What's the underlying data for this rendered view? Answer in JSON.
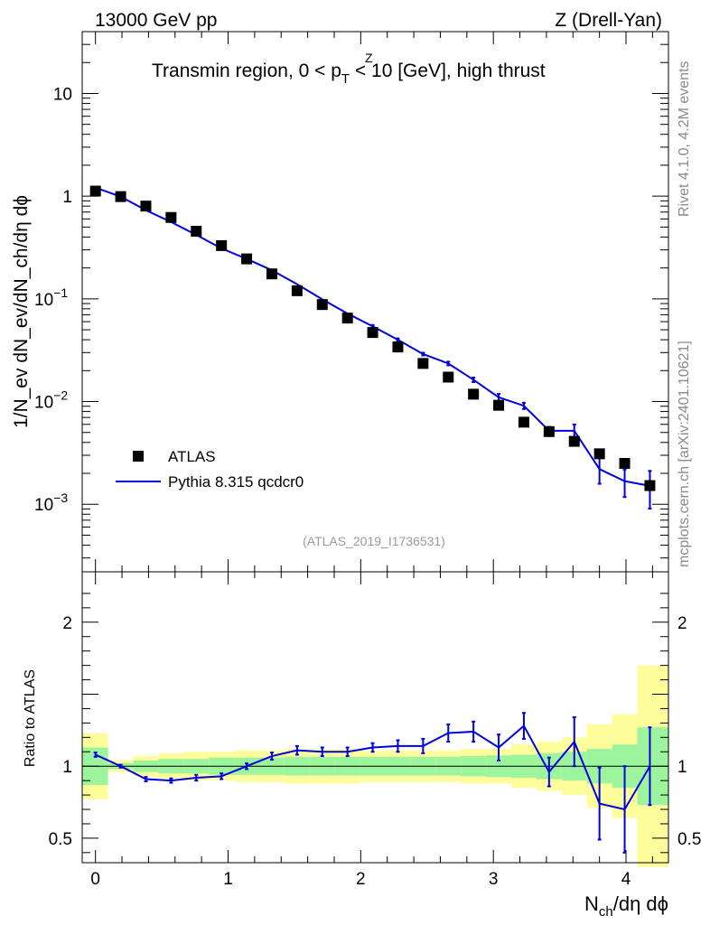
{
  "chart_data": {
    "type": "scatter",
    "header_left": "13000 GeV pp",
    "header_right": "Z (Drell-Yan)",
    "title_prefix": "Transmin region, 0 < p",
    "title_sub": "T",
    "title_sup": "Z",
    "title_suffix": " < 10 [GeV], high thrust",
    "ylabel_top": "1/N_ev dN_ev/dN_ch/dη dϕ",
    "ylabel_ratio": "Ratio to ATLAS",
    "xlabel_base": "N",
    "xlabel_sub": "ch",
    "xlabel_rest": "/dη dϕ",
    "side_label_1": "Rivet 4.1.0,  4.2M events",
    "side_label_2": "mcplots.cern.ch [arXiv:2401.10621]",
    "analysis_id": "(ATLAS_2019_I1736531)",
    "legend": [
      "ATLAS",
      "Pythia 8.315 qcdcr0"
    ],
    "colors": {
      "data": "#000000",
      "mc": "#0000e0",
      "band_inner": "#9cf59c",
      "band_outer": "#fdfd9c"
    },
    "xlim": [
      -0.1,
      4.32
    ],
    "ylim_main": [
      0.00022,
      40
    ],
    "ylim_ratio": [
      0.33,
      2.35
    ],
    "x_ticks": [
      "0",
      "1",
      "2",
      "3",
      "4"
    ],
    "y_ticks_main": [
      {
        "value": 10,
        "base": "10",
        "exp": ""
      },
      {
        "value": 1,
        "base": "1",
        "exp": ""
      },
      {
        "value": 0.1,
        "base": "10",
        "exp": "−1"
      },
      {
        "value": 0.01,
        "base": "10",
        "exp": "−2"
      },
      {
        "value": 0.001,
        "base": "10",
        "exp": "−3"
      }
    ],
    "y_ticks_ratio": [
      {
        "value": 2,
        "label": "2"
      },
      {
        "value": 1,
        "label": "1"
      },
      {
        "value": 0.5,
        "label": "0.5"
      }
    ],
    "x": [
      0.0,
      0.19,
      0.38,
      0.57,
      0.76,
      0.95,
      1.14,
      1.33,
      1.52,
      1.71,
      1.9,
      2.09,
      2.28,
      2.47,
      2.66,
      2.85,
      3.04,
      3.23,
      3.42,
      3.61,
      3.8,
      3.99,
      4.18
    ],
    "atlas": [
      1.12,
      0.99,
      0.8,
      0.62,
      0.455,
      0.33,
      0.245,
      0.175,
      0.12,
      0.088,
      0.065,
      0.047,
      0.034,
      0.0235,
      0.0173,
      0.0118,
      0.0092,
      0.0063,
      0.0051,
      0.0041,
      0.0031,
      0.0025,
      0.00152
    ],
    "mc": [
      1.21,
      0.99,
      0.73,
      0.56,
      0.42,
      0.31,
      0.245,
      0.19,
      0.139,
      0.099,
      0.072,
      0.054,
      0.04,
      0.029,
      0.0235,
      0.0163,
      0.011,
      0.0091,
      0.0052,
      0.0052,
      0.0022,
      0.00168,
      0.00151
    ],
    "mc_err": [
      0.02,
      0.01,
      0.01,
      0.01,
      0.01,
      0.01,
      0.01,
      0.01,
      0.02,
      0.02,
      0.02,
      0.03,
      0.03,
      0.03,
      0.04,
      0.05,
      0.08,
      0.07,
      0.09,
      0.15,
      0.28,
      0.3,
      0.4
    ],
    "ratio": [
      1.08,
      1.0,
      0.91,
      0.9,
      0.92,
      0.93,
      1.0,
      1.07,
      1.11,
      1.1,
      1.1,
      1.13,
      1.14,
      1.14,
      1.23,
      1.24,
      1.13,
      1.28,
      0.96,
      1.17,
      0.74,
      0.7,
      1.0
    ],
    "ratio_err": [
      0.015,
      0.01,
      0.015,
      0.015,
      0.02,
      0.02,
      0.02,
      0.025,
      0.03,
      0.03,
      0.03,
      0.03,
      0.04,
      0.05,
      0.06,
      0.07,
      0.09,
      0.09,
      0.1,
      0.17,
      0.25,
      0.3,
      0.27
    ],
    "band_bins": [
      -0.1,
      0.095,
      0.285,
      0.475,
      0.665,
      0.855,
      1.045,
      1.235,
      1.425,
      1.615,
      1.805,
      1.995,
      2.185,
      2.375,
      2.565,
      2.755,
      2.945,
      3.135,
      3.325,
      3.515,
      3.705,
      3.895,
      4.085,
      4.32
    ],
    "band_inner": [
      0.13,
      0.02,
      0.04,
      0.05,
      0.05,
      0.06,
      0.06,
      0.06,
      0.065,
      0.065,
      0.065,
      0.065,
      0.065,
      0.065,
      0.065,
      0.07,
      0.075,
      0.08,
      0.09,
      0.1,
      0.12,
      0.15,
      0.27
    ],
    "band_outer": [
      0.23,
      0.04,
      0.07,
      0.09,
      0.1,
      0.1,
      0.11,
      0.11,
      0.12,
      0.12,
      0.12,
      0.11,
      0.11,
      0.11,
      0.11,
      0.12,
      0.12,
      0.15,
      0.17,
      0.2,
      0.29,
      0.36,
      0.7
    ]
  }
}
